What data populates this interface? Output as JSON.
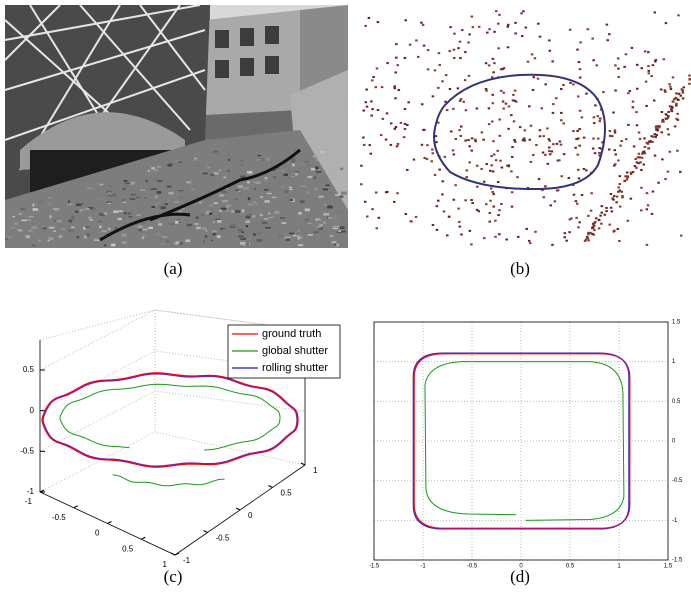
{
  "panels": [
    {
      "caption": "(a)"
    },
    {
      "caption": "(b)"
    },
    {
      "caption": "(c)",
      "zticks": [
        0.5,
        0,
        -0.5,
        -1
      ],
      "xticks": [
        -1,
        -0.5,
        0,
        0.5,
        1
      ],
      "yticks": [
        -1,
        -0.5,
        0,
        0.5,
        1
      ],
      "legend": [
        {
          "name": "ground truth",
          "color": "#ff0000"
        },
        {
          "name": "global shutter",
          "color": "#1a9a1a"
        },
        {
          "name": "rolling shutter",
          "color": "#2020c0"
        }
      ]
    },
    {
      "caption": "(d)",
      "xlim": [
        -1.5,
        1.5
      ],
      "ylim": [
        -1.5,
        1.5
      ],
      "xticks": [
        -1.5,
        -1,
        -0.5,
        0,
        0.5,
        1,
        1.5
      ],
      "yticks": [
        -1.5,
        -1,
        -0.5,
        0,
        0.5,
        1,
        1.5
      ]
    }
  ]
}
